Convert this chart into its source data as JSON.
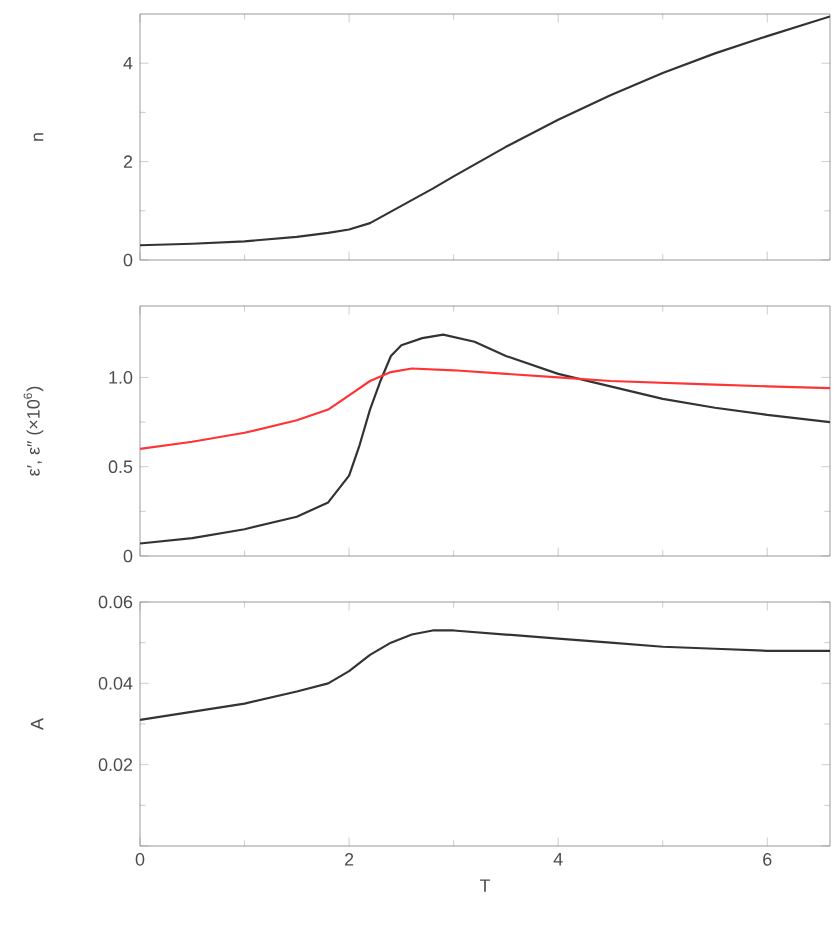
{
  "chart_data": [
    {
      "type": "line",
      "ylabel": "n",
      "xlim": [
        0,
        6.6
      ],
      "ylim": [
        0,
        5
      ],
      "xticks": [
        0,
        2,
        4,
        6
      ],
      "yticks": [
        0,
        2,
        4
      ],
      "tick_labels": "y",
      "marker": "none",
      "line_style": "solid",
      "series": [
        {
          "color": "#333333",
          "x": [
            0,
            0.5,
            1,
            1.5,
            1.8,
            2,
            2.2,
            2.5,
            2.8,
            3,
            3.5,
            4,
            4.5,
            5,
            5.5,
            6,
            6.6
          ],
          "values": [
            0.3,
            0.33,
            0.38,
            0.47,
            0.55,
            0.62,
            0.75,
            1.1,
            1.45,
            1.7,
            2.3,
            2.85,
            3.35,
            3.8,
            4.2,
            4.55,
            4.95
          ]
        }
      ]
    },
    {
      "type": "line",
      "ylabel": "ε′, ε″ (×10$^{6}$)",
      "xlim": [
        0,
        6.6
      ],
      "ylim": [
        0,
        1.4
      ],
      "xticks": [
        0,
        2,
        4,
        6
      ],
      "yticks": [
        0,
        0.5,
        {
          "value": 1,
          "label": "1.0"
        }
      ],
      "tick_labels": "y",
      "marker": "none",
      "line_style": "solid",
      "series": [
        {
          "color": "#333333",
          "x": [
            0,
            0.5,
            1,
            1.5,
            1.8,
            2,
            2.1,
            2.2,
            2.3,
            2.4,
            2.5,
            2.7,
            2.9,
            3.2,
            3.5,
            4,
            4.5,
            5,
            5.5,
            6,
            6.6
          ],
          "values": [
            0.07,
            0.1,
            0.15,
            0.22,
            0.3,
            0.45,
            0.62,
            0.82,
            0.98,
            1.12,
            1.18,
            1.22,
            1.24,
            1.2,
            1.12,
            1.02,
            0.95,
            0.88,
            0.83,
            0.79,
            0.75
          ]
        },
        {
          "color": "#ff3333",
          "x": [
            0,
            0.5,
            1,
            1.5,
            1.8,
            2,
            2.2,
            2.4,
            2.6,
            3,
            3.5,
            4,
            4.5,
            5,
            5.5,
            6,
            6.6
          ],
          "values": [
            0.6,
            0.64,
            0.69,
            0.76,
            0.82,
            0.9,
            0.98,
            1.03,
            1.05,
            1.04,
            1.02,
            1.0,
            0.98,
            0.97,
            0.96,
            0.95,
            0.94
          ]
        }
      ]
    },
    {
      "type": "line",
      "ylabel": "A",
      "xlabel": "T",
      "xlim": [
        0,
        6.6
      ],
      "ylim": [
        0,
        0.06
      ],
      "xticks": [
        0,
        2,
        4,
        6
      ],
      "yticks": [
        {
          "value": 0,
          "label": null
        },
        0.02,
        0.04,
        0.06
      ],
      "marker": "none",
      "line_style": "solid",
      "series": [
        {
          "color": "#333333",
          "x": [
            0,
            0.5,
            1,
            1.5,
            1.8,
            2,
            2.2,
            2.4,
            2.6,
            2.8,
            3,
            3.5,
            4,
            4.5,
            5,
            5.5,
            6,
            6.6
          ],
          "values": [
            0.031,
            0.033,
            0.035,
            0.038,
            0.04,
            0.043,
            0.047,
            0.05,
            0.052,
            0.053,
            0.053,
            0.052,
            0.051,
            0.05,
            0.049,
            0.0485,
            0.048,
            0.048
          ]
        }
      ]
    }
  ]
}
